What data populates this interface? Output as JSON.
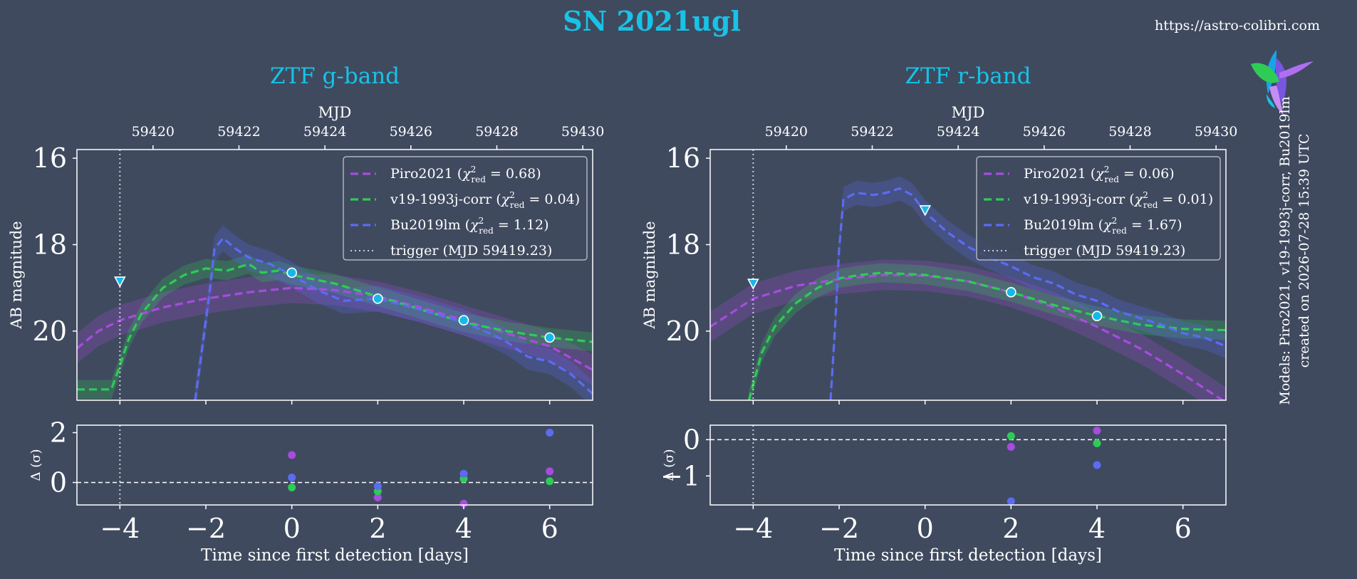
{
  "title": "SN 2021ugl",
  "url": "https://astro-colibri.com",
  "side_note_1": "Models: Piro2021, v19-1993j-corr, Bu2019lm",
  "side_note_2": "created on 2026-07-28 15:39 UTC",
  "logo": "hummingbird-logo",
  "colors": {
    "background": "#3f4a5f",
    "title": "#17c3e6",
    "text": "#ffffff",
    "piro": "#a64ddd",
    "v19": "#2ecc55",
    "bu": "#5b6cf2",
    "detection": "#17b8e8",
    "grid": "#ffffff"
  },
  "shared": {
    "ylabel_main": "AB magnitude",
    "ylabel_resid": "Δ (σ)",
    "xlabel": "Time since first detection [days]",
    "top_axis_label": "MJD",
    "trigger_label": "trigger (MJD 59419.23)"
  },
  "chart_data": [
    {
      "type": "line",
      "title": "ZTF g-band",
      "xlim": [
        -5,
        7
      ],
      "ylim": [
        21.6,
        15.8
      ],
      "yticks": [
        16,
        18,
        20
      ],
      "xticks": [
        -4,
        -2,
        0,
        2,
        4,
        6
      ],
      "mjd_ticks": [
        59420,
        59422,
        59424,
        59426,
        59428,
        59430
      ],
      "mjd_offset": 59423.23,
      "trigger_x": -4,
      "series": [
        {
          "name": "Piro2021",
          "chi2": "0.68",
          "color": "#a64ddd",
          "band": 0.35,
          "x": [
            -5,
            -4.5,
            -4,
            -3,
            -2,
            -1,
            0,
            1,
            2,
            3,
            4,
            5,
            6,
            7
          ],
          "y": [
            20.4,
            20.0,
            19.75,
            19.45,
            19.25,
            19.1,
            19.0,
            19.05,
            19.2,
            19.45,
            19.75,
            20.05,
            20.35,
            20.9
          ]
        },
        {
          "name": "v19-1993j-corr",
          "chi2": "0.04",
          "color": "#2ecc55",
          "band": 0.22,
          "x": [
            -5,
            -4.2,
            -4,
            -3.8,
            -3.5,
            -3,
            -2.5,
            -2,
            -1.5,
            -1,
            -0.7,
            -0.3,
            0,
            1,
            2,
            3,
            4,
            5,
            6,
            7
          ],
          "y": [
            21.35,
            21.35,
            20.8,
            20.2,
            19.6,
            19.0,
            18.7,
            18.55,
            18.6,
            18.45,
            18.65,
            18.6,
            18.7,
            18.9,
            19.2,
            19.5,
            19.8,
            20.0,
            20.15,
            20.25
          ]
        },
        {
          "name": "Bu2019lm",
          "chi2": "1.12",
          "color": "#5b6cf2",
          "band": 0.3,
          "x": [
            -2.25,
            -2.1,
            -1.9,
            -1.8,
            -1.6,
            -1.3,
            -1,
            -0.5,
            0,
            0.6,
            1.2,
            2,
            2.6,
            3,
            4,
            4.6,
            5,
            5.5,
            6,
            6.5,
            7
          ],
          "y": [
            21.6,
            20.5,
            19.0,
            18.1,
            17.85,
            18.1,
            18.3,
            18.45,
            18.7,
            19.05,
            19.3,
            19.25,
            19.4,
            19.5,
            19.8,
            20.05,
            20.25,
            20.6,
            20.7,
            21.0,
            21.45
          ]
        }
      ],
      "detections": {
        "x": [
          0,
          2,
          4,
          6
        ],
        "y": [
          18.65,
          19.25,
          19.75,
          20.15
        ]
      },
      "upper_limits": {
        "x": [
          -4
        ],
        "y": [
          18.85
        ]
      },
      "residuals": {
        "ylim": [
          -0.9,
          2.3
        ],
        "yticks": [
          0,
          2
        ],
        "points": [
          {
            "series": "Piro2021",
            "x": [
              0,
              2,
              4,
              6
            ],
            "y": [
              1.1,
              -0.6,
              -0.85,
              0.45
            ]
          },
          {
            "series": "v19-1993j-corr",
            "x": [
              0,
              2,
              4,
              6
            ],
            "y": [
              -0.2,
              -0.35,
              0.15,
              0.05
            ]
          },
          {
            "series": "Bu2019lm",
            "x": [
              0,
              2,
              4,
              6
            ],
            "y": [
              0.2,
              -0.15,
              0.35,
              2.0
            ]
          }
        ]
      }
    },
    {
      "type": "line",
      "title": "ZTF r-band",
      "xlim": [
        -5,
        7
      ],
      "ylim": [
        21.6,
        15.8
      ],
      "yticks": [
        16,
        18,
        20
      ],
      "xticks": [
        -4,
        -2,
        0,
        2,
        4,
        6
      ],
      "mjd_ticks": [
        59420,
        59422,
        59424,
        59426,
        59428,
        59430
      ],
      "mjd_offset": 59423.23,
      "trigger_x": -4,
      "series": [
        {
          "name": "Piro2021",
          "chi2": "0.06",
          "color": "#a64ddd",
          "band": 0.35,
          "x": [
            -5,
            -4,
            -3,
            -2,
            -1,
            0,
            1,
            2,
            3,
            4,
            5,
            6,
            7
          ],
          "y": [
            19.9,
            19.25,
            18.95,
            18.8,
            18.7,
            18.72,
            18.85,
            19.1,
            19.45,
            19.9,
            20.4,
            21.0,
            21.65
          ]
        },
        {
          "name": "v19-1993j-corr",
          "chi2": "0.01",
          "color": "#2ecc55",
          "band": 0.22,
          "x": [
            -4.1,
            -3.8,
            -3.5,
            -3,
            -2.5,
            -2,
            -1.5,
            -1,
            0,
            1,
            2,
            3,
            4,
            5,
            6,
            7
          ],
          "y": [
            21.6,
            20.5,
            19.9,
            19.35,
            19.0,
            18.78,
            18.7,
            18.65,
            18.7,
            18.85,
            19.1,
            19.4,
            19.65,
            19.85,
            19.95,
            19.98
          ]
        },
        {
          "name": "Bu2019lm",
          "chi2": "1.67",
          "color": "#5b6cf2",
          "band": 0.28,
          "x": [
            -2.2,
            -2.1,
            -2,
            -1.9,
            -1.6,
            -1.2,
            -0.9,
            -0.6,
            -0.3,
            0,
            0.5,
            1,
            1.5,
            2,
            2.5,
            3,
            3.5,
            4,
            4.5,
            5,
            5.5,
            6,
            6.5,
            7
          ],
          "y": [
            21.6,
            20.0,
            18.1,
            16.95,
            16.8,
            16.85,
            16.8,
            16.7,
            16.85,
            17.25,
            17.7,
            18.05,
            18.3,
            18.5,
            18.75,
            18.9,
            19.15,
            19.3,
            19.55,
            19.7,
            19.85,
            20.05,
            20.15,
            20.35
          ]
        }
      ],
      "detections": {
        "x": [
          2,
          4
        ],
        "y": [
          19.1,
          19.65
        ]
      },
      "upper_limits": {
        "x": [
          -4,
          0
        ],
        "y": [
          18.9,
          17.2
        ]
      },
      "residuals": {
        "ylim": [
          -1.8,
          0.4
        ],
        "yticks": [
          0,
          -1
        ],
        "points": [
          {
            "series": "Piro2021",
            "x": [
              2,
              4
            ],
            "y": [
              -0.2,
              0.25
            ]
          },
          {
            "series": "v19-1993j-corr",
            "x": [
              2,
              4
            ],
            "y": [
              0.1,
              -0.1
            ]
          },
          {
            "series": "Bu2019lm",
            "x": [
              2,
              4
            ],
            "y": [
              -1.7,
              -0.7
            ]
          }
        ]
      }
    }
  ]
}
